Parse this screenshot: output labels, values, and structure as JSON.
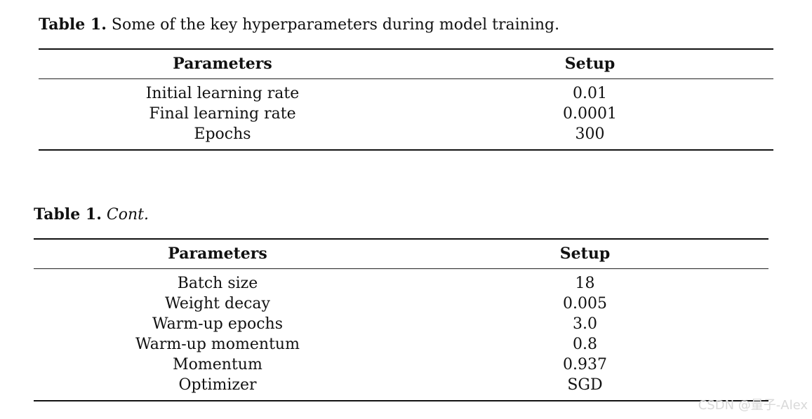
{
  "table1": {
    "caption_label": "Table 1.",
    "caption_text": "Some of the key hyperparameters during model training.",
    "header": {
      "parameters": "Parameters",
      "setup": "Setup"
    },
    "rows": [
      {
        "param": "Initial learning rate",
        "setup": "0.01"
      },
      {
        "param": "Final learning rate",
        "setup": "0.0001"
      },
      {
        "param": "Epochs",
        "setup": "300"
      }
    ]
  },
  "table1_cont": {
    "caption_label": "Table 1.",
    "caption_text": "Cont.",
    "header": {
      "parameters": "Parameters",
      "setup": "Setup"
    },
    "rows": [
      {
        "param": "Batch size",
        "setup": "18"
      },
      {
        "param": "Weight decay",
        "setup": "0.005"
      },
      {
        "param": "Warm-up epochs",
        "setup": "3.0"
      },
      {
        "param": "Warm-up momentum",
        "setup": "0.8"
      },
      {
        "param": "Momentum",
        "setup": "0.937"
      },
      {
        "param": "Optimizer",
        "setup": "SGD"
      }
    ]
  },
  "watermark": "CSDN @量子-Alex"
}
